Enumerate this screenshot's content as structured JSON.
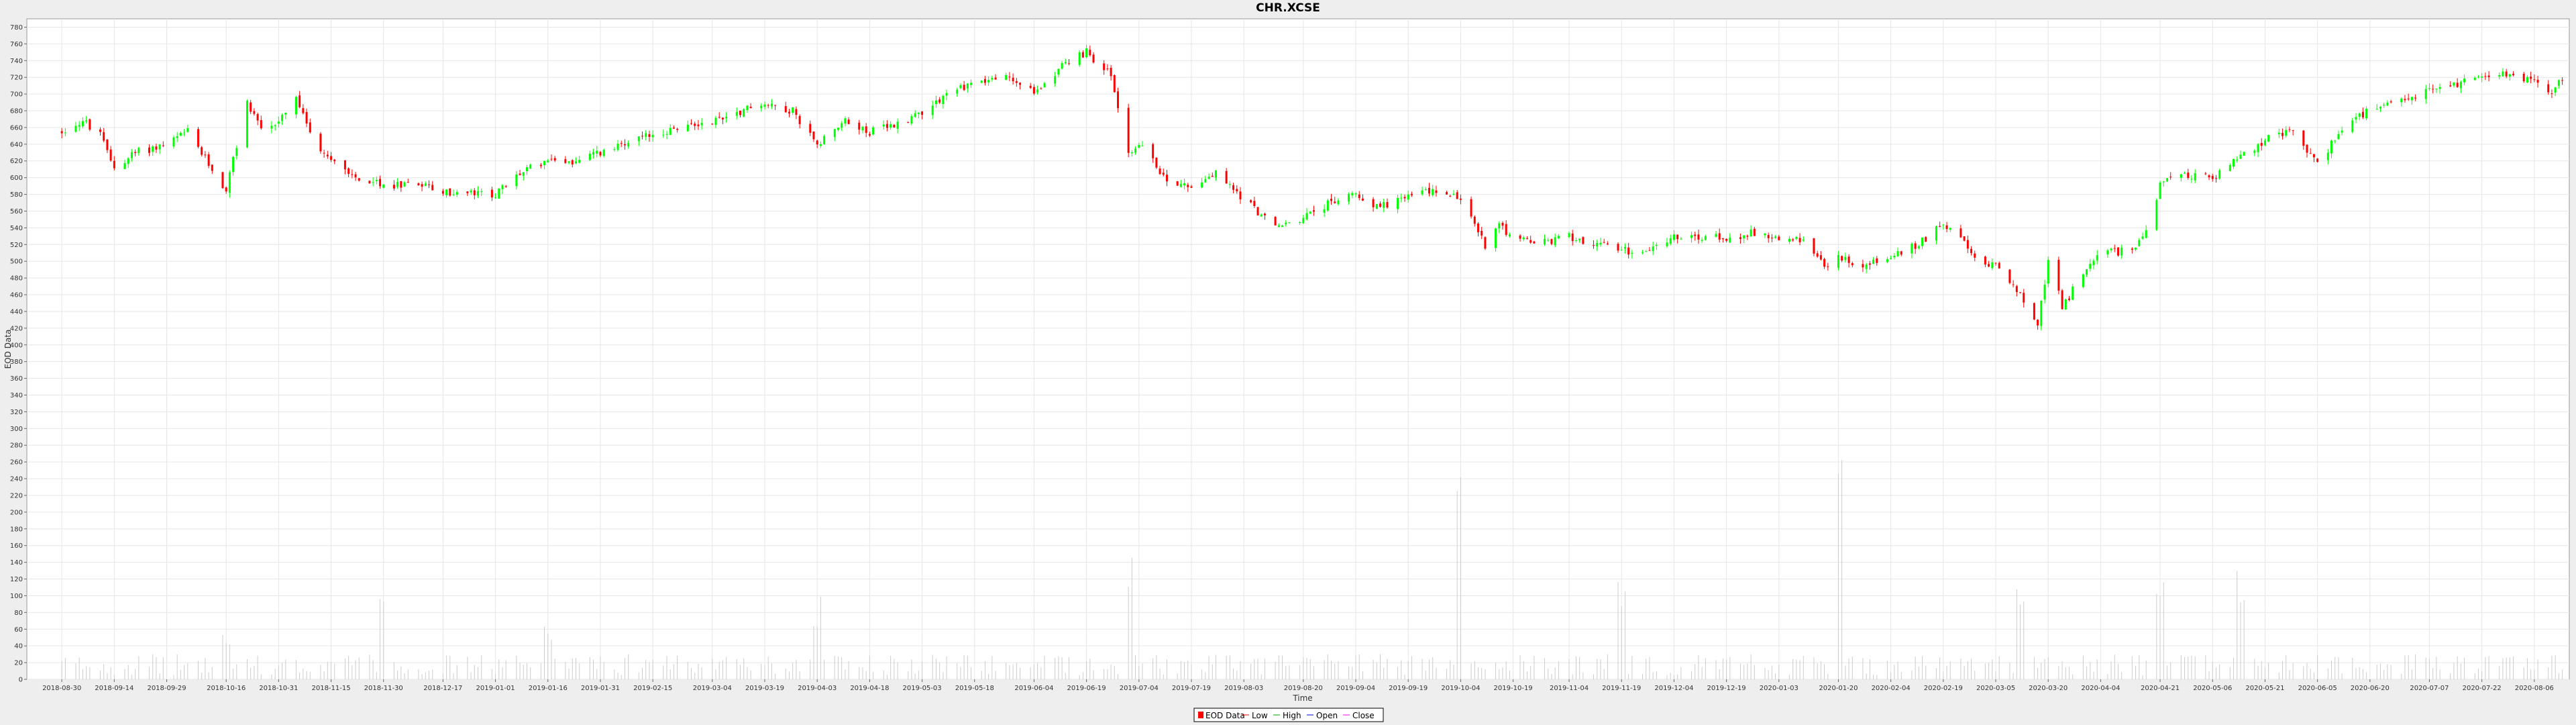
{
  "chart_data": {
    "type": "candlestick",
    "title": "CHR.XCSE",
    "xlabel": "Time",
    "ylabel": "EOD Data",
    "ylim": [
      0,
      790
    ],
    "y_ticks": [
      0,
      20,
      40,
      60,
      80,
      100,
      120,
      140,
      160,
      180,
      200,
      220,
      240,
      260,
      280,
      300,
      320,
      340,
      360,
      380,
      400,
      420,
      440,
      460,
      480,
      500,
      520,
      540,
      560,
      580,
      600,
      620,
      640,
      660,
      680,
      700,
      720,
      740,
      760,
      780
    ],
    "x_ticks": [
      "2018-08-30",
      "2018-09-14",
      "2018-09-29",
      "2018-10-16",
      "2018-10-31",
      "2018-11-15",
      "2018-11-30",
      "2018-12-17",
      "2019-01-01",
      "2019-01-16",
      "2019-01-31",
      "2019-02-15",
      "2019-03-04",
      "2019-03-19",
      "2019-04-03",
      "2019-04-18",
      "2019-05-03",
      "2019-05-18",
      "2019-06-04",
      "2019-06-19",
      "2019-07-04",
      "2019-07-19",
      "2019-08-03",
      "2019-08-20",
      "2019-09-04",
      "2019-09-19",
      "2019-10-04",
      "2019-10-19",
      "2019-11-04",
      "2019-11-19",
      "2019-12-04",
      "2019-12-19",
      "2020-01-03",
      "2020-01-20",
      "2020-02-04",
      "2020-02-19",
      "2020-03-05",
      "2020-03-20",
      "2020-04-04",
      "2020-04-21",
      "2020-05-06",
      "2020-05-21",
      "2020-06-05",
      "2020-06-20",
      "2020-07-07",
      "2020-07-22",
      "2020-08-06"
    ],
    "series_close": [
      {
        "date": "2018-08-30",
        "close": 655
      },
      {
        "date": "2018-09-05",
        "close": 668
      },
      {
        "date": "2018-09-10",
        "close": 650
      },
      {
        "date": "2018-09-14",
        "close": 612
      },
      {
        "date": "2018-09-20",
        "close": 630
      },
      {
        "date": "2018-09-29",
        "close": 640
      },
      {
        "date": "2018-10-05",
        "close": 655
      },
      {
        "date": "2018-10-10",
        "close": 622
      },
      {
        "date": "2018-10-16",
        "close": 585
      },
      {
        "date": "2018-10-22",
        "close": 690
      },
      {
        "date": "2018-10-26",
        "close": 660
      },
      {
        "date": "2018-10-31",
        "close": 665
      },
      {
        "date": "2018-11-05",
        "close": 695
      },
      {
        "date": "2018-11-10",
        "close": 640
      },
      {
        "date": "2018-11-15",
        "close": 625
      },
      {
        "date": "2018-11-22",
        "close": 600
      },
      {
        "date": "2018-11-30",
        "close": 590
      },
      {
        "date": "2018-12-10",
        "close": 595
      },
      {
        "date": "2018-12-17",
        "close": 582
      },
      {
        "date": "2019-01-01",
        "close": 580
      },
      {
        "date": "2019-01-08",
        "close": 605
      },
      {
        "date": "2019-01-16",
        "close": 622
      },
      {
        "date": "2019-01-24",
        "close": 618
      },
      {
        "date": "2019-01-31",
        "close": 630
      },
      {
        "date": "2019-02-08",
        "close": 640
      },
      {
        "date": "2019-02-15",
        "close": 652
      },
      {
        "date": "2019-03-04",
        "close": 668
      },
      {
        "date": "2019-03-19",
        "close": 690
      },
      {
        "date": "2019-03-27",
        "close": 680
      },
      {
        "date": "2019-04-03",
        "close": 640
      },
      {
        "date": "2019-04-10",
        "close": 668
      },
      {
        "date": "2019-04-18",
        "close": 655
      },
      {
        "date": "2019-04-25",
        "close": 662
      },
      {
        "date": "2019-05-03",
        "close": 680
      },
      {
        "date": "2019-05-10",
        "close": 700
      },
      {
        "date": "2019-05-18",
        "close": 715
      },
      {
        "date": "2019-05-28",
        "close": 720
      },
      {
        "date": "2019-06-04",
        "close": 700
      },
      {
        "date": "2019-06-12",
        "close": 735
      },
      {
        "date": "2019-06-19",
        "close": 750
      },
      {
        "date": "2019-06-26",
        "close": 722
      },
      {
        "date": "2019-07-01",
        "close": 630
      },
      {
        "date": "2019-07-04",
        "close": 640
      },
      {
        "date": "2019-07-12",
        "close": 598
      },
      {
        "date": "2019-07-19",
        "close": 590
      },
      {
        "date": "2019-07-26",
        "close": 605
      },
      {
        "date": "2019-08-03",
        "close": 575
      },
      {
        "date": "2019-08-12",
        "close": 540
      },
      {
        "date": "2019-08-20",
        "close": 552
      },
      {
        "date": "2019-08-27",
        "close": 568
      },
      {
        "date": "2019-09-04",
        "close": 582
      },
      {
        "date": "2019-09-10",
        "close": 565
      },
      {
        "date": "2019-09-19",
        "close": 578
      },
      {
        "date": "2019-09-26",
        "close": 585
      },
      {
        "date": "2019-10-04",
        "close": 575
      },
      {
        "date": "2019-10-11",
        "close": 520
      },
      {
        "date": "2019-10-15",
        "close": 548
      },
      {
        "date": "2019-10-19",
        "close": 525
      },
      {
        "date": "2019-10-28",
        "close": 522
      },
      {
        "date": "2019-11-04",
        "close": 530
      },
      {
        "date": "2019-11-12",
        "close": 520
      },
      {
        "date": "2019-11-19",
        "close": 512
      },
      {
        "date": "2019-11-26",
        "close": 515
      },
      {
        "date": "2019-12-04",
        "close": 528
      },
      {
        "date": "2019-12-19",
        "close": 528
      },
      {
        "date": "2019-12-27",
        "close": 535
      },
      {
        "date": "2020-01-03",
        "close": 528
      },
      {
        "date": "2020-01-12",
        "close": 522
      },
      {
        "date": "2020-01-16",
        "close": 490
      },
      {
        "date": "2020-01-20",
        "close": 505
      },
      {
        "date": "2020-01-27",
        "close": 495
      },
      {
        "date": "2020-02-04",
        "close": 505
      },
      {
        "date": "2020-02-12",
        "close": 520
      },
      {
        "date": "2020-02-19",
        "close": 548
      },
      {
        "date": "2020-02-25",
        "close": 520
      },
      {
        "date": "2020-03-01",
        "close": 490
      },
      {
        "date": "2020-03-05",
        "close": 500
      },
      {
        "date": "2020-03-12",
        "close": 460
      },
      {
        "date": "2020-03-17",
        "close": 420
      },
      {
        "date": "2020-03-20",
        "close": 505
      },
      {
        "date": "2020-03-24",
        "close": 445
      },
      {
        "date": "2020-03-29",
        "close": 478
      },
      {
        "date": "2020-04-04",
        "close": 510
      },
      {
        "date": "2020-04-12",
        "close": 512
      },
      {
        "date": "2020-04-17",
        "close": 535
      },
      {
        "date": "2020-04-21",
        "close": 590
      },
      {
        "date": "2020-04-28",
        "close": 605
      },
      {
        "date": "2020-05-06",
        "close": 598
      },
      {
        "date": "2020-05-14",
        "close": 625
      },
      {
        "date": "2020-05-21",
        "close": 645
      },
      {
        "date": "2020-05-29",
        "close": 655
      },
      {
        "date": "2020-06-05",
        "close": 615
      },
      {
        "date": "2020-06-10",
        "close": 648
      },
      {
        "date": "2020-06-15",
        "close": 668
      },
      {
        "date": "2020-06-20",
        "close": 680
      },
      {
        "date": "2020-06-28",
        "close": 688
      },
      {
        "date": "2020-07-07",
        "close": 705
      },
      {
        "date": "2020-07-15",
        "close": 712
      },
      {
        "date": "2020-07-22",
        "close": 725
      },
      {
        "date": "2020-07-30",
        "close": 722
      },
      {
        "date": "2020-08-06",
        "close": 718
      },
      {
        "date": "2020-08-10",
        "close": 698
      },
      {
        "date": "2020-08-14",
        "close": 718
      }
    ],
    "volume_peaks": [
      {
        "date": "2018-10-16",
        "value": 60
      },
      {
        "date": "2018-11-30",
        "value": 122
      },
      {
        "date": "2019-01-16",
        "value": 75
      },
      {
        "date": "2019-04-03",
        "value": 105
      },
      {
        "date": "2019-07-01",
        "value": 175
      },
      {
        "date": "2019-10-04",
        "value": 262
      },
      {
        "date": "2019-11-19",
        "value": 135
      },
      {
        "date": "2020-01-20",
        "value": 298
      },
      {
        "date": "2020-03-12",
        "value": 118
      },
      {
        "date": "2020-04-21",
        "value": 155
      },
      {
        "date": "2020-05-14",
        "value": 143
      }
    ],
    "legend": [
      "EOD Data",
      "Low",
      "High",
      "Open",
      "Close"
    ],
    "legend_position": "bottom-center",
    "grid": true,
    "colors": {
      "up": "#00ff00",
      "down": "#ff0000",
      "volume": "#cccccc",
      "grid": "#e6e6e6"
    }
  }
}
